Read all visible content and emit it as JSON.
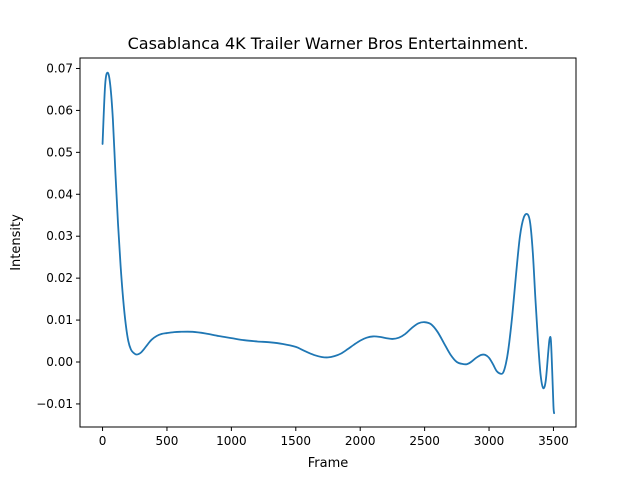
{
  "chart_data": {
    "type": "line",
    "title": "Casablanca  4K Trailer  Warner Bros Entertainment.",
    "xlabel": "Frame",
    "ylabel": "Intensity",
    "xlim": [
      -175,
      3675
    ],
    "ylim": [
      -0.0155,
      0.0725
    ],
    "xticks": [
      0,
      500,
      1000,
      1500,
      2000,
      2500,
      3000,
      3500
    ],
    "yticks": [
      -0.01,
      0.0,
      0.01,
      0.02,
      0.03,
      0.04,
      0.05,
      0.06,
      0.07
    ],
    "xtick_labels": [
      "0",
      "500",
      "1000",
      "1500",
      "2000",
      "2500",
      "3000",
      "3500"
    ],
    "ytick_labels": [
      "−0.01",
      "0.00",
      "0.01",
      "0.02",
      "0.03",
      "0.04",
      "0.05",
      "0.06",
      "0.07"
    ],
    "grid": false,
    "color": "#1f77b4",
    "series": [
      {
        "x": [
          0,
          20,
          40,
          60,
          80,
          100,
          120,
          140,
          160,
          180,
          200,
          220,
          240,
          260,
          280,
          300,
          320,
          350,
          380,
          420,
          460,
          500,
          550,
          600,
          700,
          800,
          900,
          1000,
          1100,
          1200,
          1300,
          1400,
          1500,
          1550,
          1600,
          1650,
          1700,
          1750,
          1800,
          1850,
          1900,
          1950,
          2000,
          2050,
          2100,
          2150,
          2200,
          2250,
          2300,
          2350,
          2400,
          2450,
          2500,
          2550,
          2600,
          2650,
          2700,
          2750,
          2800,
          2830,
          2860,
          2900,
          2940,
          2970,
          3000,
          3030,
          3060,
          3090,
          3110,
          3130,
          3150,
          3180,
          3210,
          3240,
          3270,
          3300,
          3320,
          3340,
          3360,
          3380,
          3400,
          3420,
          3440,
          3460,
          3470,
          3480,
          3490,
          3500,
          3505
        ],
        "y": [
          0.052,
          0.066,
          0.069,
          0.066,
          0.058,
          0.045,
          0.033,
          0.023,
          0.015,
          0.009,
          0.005,
          0.003,
          0.0022,
          0.0018,
          0.0019,
          0.0023,
          0.003,
          0.0042,
          0.0053,
          0.0062,
          0.0067,
          0.0069,
          0.0071,
          0.0072,
          0.0072,
          0.0068,
          0.0062,
          0.0057,
          0.0052,
          0.0049,
          0.0047,
          0.0043,
          0.0036,
          0.0029,
          0.0022,
          0.0016,
          0.0012,
          0.0011,
          0.0014,
          0.002,
          0.003,
          0.0041,
          0.0051,
          0.0058,
          0.0061,
          0.006,
          0.0057,
          0.0055,
          0.0058,
          0.0067,
          0.0081,
          0.0092,
          0.0095,
          0.009,
          0.0072,
          0.0045,
          0.0018,
          0.0,
          -0.0005,
          -0.0005,
          0.0,
          0.001,
          0.0017,
          0.0017,
          0.001,
          -0.0005,
          -0.0022,
          -0.0028,
          -0.0025,
          -0.0005,
          0.003,
          0.011,
          0.021,
          0.03,
          0.0345,
          0.0352,
          0.033,
          0.026,
          0.015,
          0.005,
          -0.003,
          -0.0062,
          -0.0045,
          0.0025,
          0.0055,
          0.0052,
          -0.002,
          -0.0105,
          -0.0122
        ]
      }
    ]
  }
}
